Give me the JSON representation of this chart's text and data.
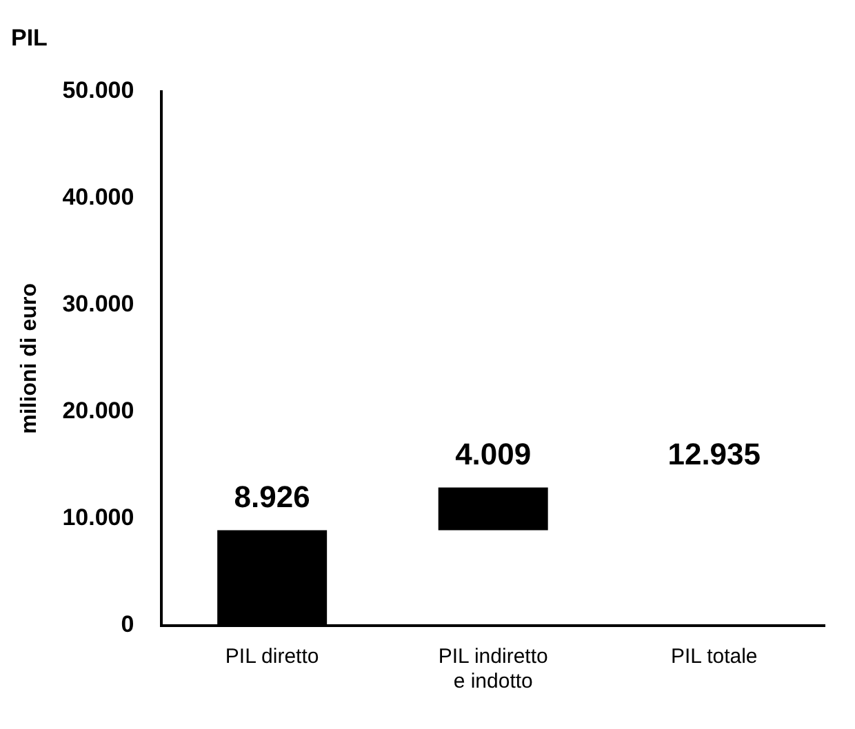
{
  "chart_data": {
    "type": "bar",
    "title": "PIL",
    "ylabel": "milioni di euro",
    "categories": [
      "PIL diretto",
      "PIL indiretto e indotto",
      "PIL totale"
    ],
    "values": [
      8926,
      4009,
      null
    ],
    "base": [
      0,
      8926,
      null
    ],
    "color": "#000000",
    "value_labels": [
      "8.926",
      "4.009",
      null
    ],
    "annotations": [
      "12.935"
    ],
    "ylim": [
      0,
      50000
    ],
    "yticks": [
      {
        "value": 0,
        "label": "0"
      },
      {
        "value": 10000,
        "label": "10.000"
      },
      {
        "value": 20000,
        "label": "20.000"
      },
      {
        "value": 30000,
        "label": "30.000"
      },
      {
        "value": 40000,
        "label": "40.000"
      },
      {
        "value": 50000,
        "label": "50.000"
      }
    ],
    "grid": false,
    "legend": false
  }
}
